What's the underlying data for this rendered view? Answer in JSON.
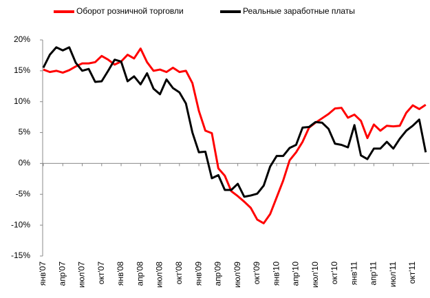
{
  "chart_data": {
    "type": "line",
    "categories": [
      "янв'07",
      null,
      null,
      "апр'07",
      null,
      null,
      "июл'07",
      null,
      null,
      "окт'07",
      null,
      null,
      "янв'08",
      null,
      null,
      "апр'08",
      null,
      null,
      "июл'08",
      null,
      null,
      "окт'08",
      null,
      null,
      "янв'09",
      null,
      null,
      "апр'09",
      null,
      null,
      "июл'09",
      null,
      null,
      "окт'09",
      null,
      null,
      "янв'10",
      null,
      null,
      "апр'10",
      null,
      null,
      "июл'10",
      null,
      null,
      "окт'10",
      null,
      null,
      "янв'11",
      null,
      null,
      "апр'11",
      null,
      null,
      "июл'11",
      null,
      null,
      "окт'11",
      null,
      null
    ],
    "series": [
      {
        "name": "Оборот розничной торговли",
        "color": "#ff0000",
        "values": [
          15.2,
          14.8,
          15.0,
          14.7,
          15.1,
          15.7,
          16.2,
          16.2,
          16.4,
          17.4,
          16.8,
          16.0,
          16.5,
          17.6,
          17.0,
          18.6,
          16.4,
          15.0,
          15.2,
          14.8,
          15.5,
          14.8,
          15.0,
          13.0,
          8.5,
          5.3,
          4.9,
          -0.8,
          -2.0,
          -4.5,
          -5.3,
          -6.2,
          -7.2,
          -9.1,
          -9.7,
          -8.2,
          -5.5,
          -2.8,
          0.5,
          1.8,
          3.5,
          5.8,
          6.6,
          7.3,
          8.0,
          8.9,
          9.0,
          7.4,
          7.9,
          6.9,
          4.1,
          6.3,
          5.3,
          6.1,
          6.0,
          6.1,
          8.2,
          9.4,
          8.8,
          9.5
        ]
      },
      {
        "name": "Реальные заработные платы",
        "color": "#000000",
        "values": [
          15.5,
          17.6,
          18.8,
          18.3,
          18.8,
          16.3,
          15.0,
          15.3,
          13.2,
          13.3,
          15.0,
          16.8,
          16.5,
          13.3,
          14.1,
          12.8,
          14.6,
          12.1,
          11.2,
          13.6,
          12.2,
          11.5,
          9.7,
          5.0,
          1.8,
          1.9,
          -2.4,
          -1.9,
          -4.3,
          -4.3,
          -3.3,
          -5.4,
          -5.2,
          -4.9,
          -3.6,
          -0.5,
          1.2,
          1.2,
          2.5,
          3.0,
          5.8,
          5.9,
          6.7,
          6.6,
          5.6,
          3.2,
          3.0,
          2.6,
          6.2,
          1.3,
          0.7,
          2.4,
          2.4,
          3.5,
          2.4,
          4.0,
          5.3,
          6.1,
          7.1,
          1.8
        ]
      }
    ],
    "ylim": [
      -15,
      20
    ],
    "yticks": [
      {
        "value": -15,
        "label": "-15%"
      },
      {
        "value": -10,
        "label": "-10%"
      },
      {
        "value": -5,
        "label": "-5%"
      },
      {
        "value": 0,
        "label": "0%"
      },
      {
        "value": 5,
        "label": "5%"
      },
      {
        "value": 10,
        "label": "10%"
      },
      {
        "value": 15,
        "label": "15%"
      },
      {
        "value": 20,
        "label": "20%"
      }
    ],
    "legend": "top"
  }
}
